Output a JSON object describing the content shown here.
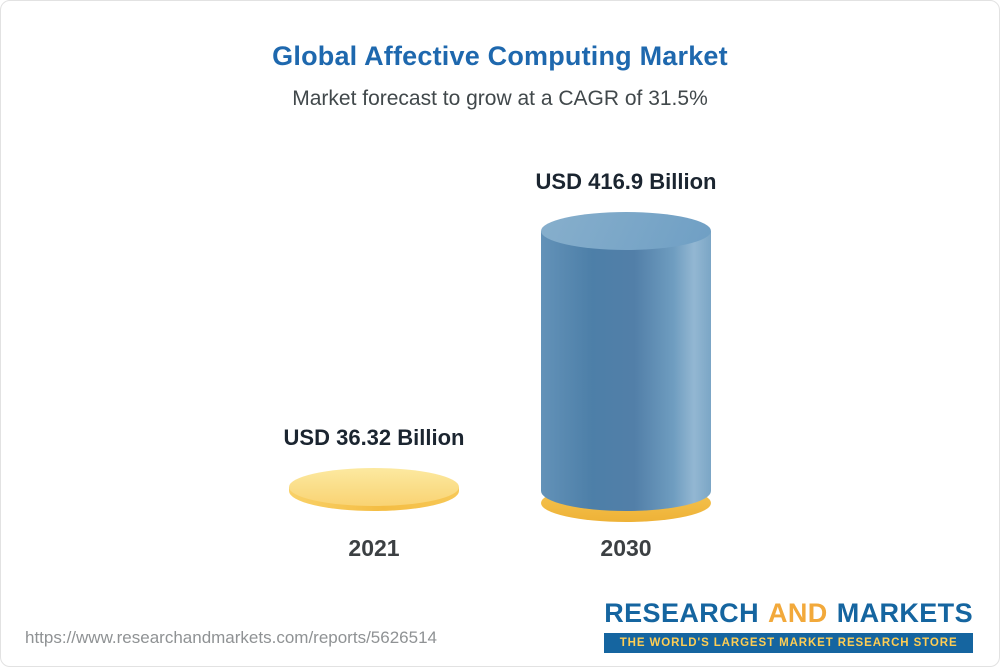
{
  "header": {
    "title": "Global Affective Computing Market",
    "subtitle": "Market forecast to grow at a CAGR of 31.5%"
  },
  "chart_data": {
    "type": "bar",
    "variant": "3d-cylinder",
    "categories": [
      "2021",
      "2030"
    ],
    "values": [
      36.32,
      416.9
    ],
    "unit": "USD Billion",
    "value_labels": [
      "USD 36.32 Billion",
      "USD 416.9 Billion"
    ],
    "series_colors": [
      "#f4bd43",
      "#4d7fa8"
    ],
    "title": "Global Affective Computing Market",
    "subtitle": "Market forecast to grow at a CAGR of 31.5%",
    "cagr_percent": 31.5,
    "legend": "none",
    "grid": false
  },
  "footer": {
    "url": "https://www.researchandmarkets.com/reports/5626514",
    "logo": {
      "part1": "RESEARCH",
      "part2": "AND",
      "part3": "MARKETS",
      "tagline": "THE WORLD'S LARGEST MARKET RESEARCH STORE",
      "brand_blue": "#1565a0",
      "brand_gold": "#f2a93b"
    }
  }
}
